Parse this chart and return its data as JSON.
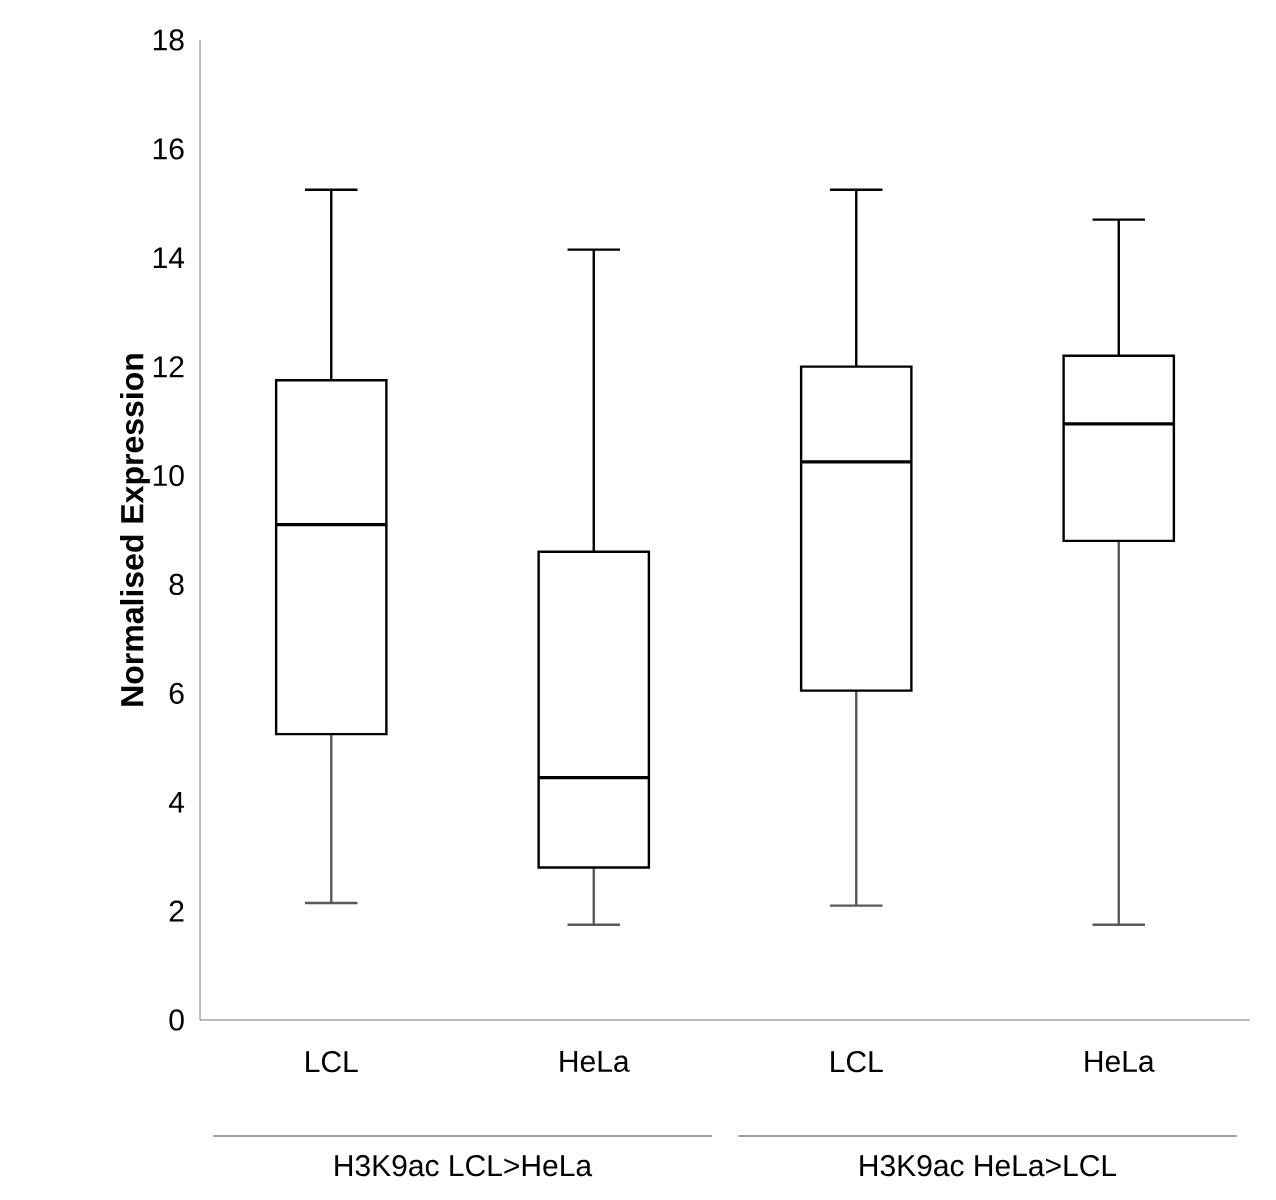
{
  "chart_data": {
    "type": "box",
    "ylabel": "Normalised Expression",
    "categories": [
      "LCL",
      "HeLa",
      "LCL",
      "HeLa"
    ],
    "boxes": [
      {
        "low": 2.15,
        "q1": 5.25,
        "median": 9.1,
        "q3": 11.75,
        "high": 15.25
      },
      {
        "low": 1.75,
        "q1": 2.8,
        "median": 4.45,
        "q3": 8.6,
        "high": 14.15
      },
      {
        "low": 2.1,
        "q1": 6.05,
        "median": 10.25,
        "q3": 12.0,
        "high": 15.25
      },
      {
        "low": 1.75,
        "q1": 8.8,
        "median": 10.95,
        "q3": 12.2,
        "high": 14.7
      }
    ],
    "ylim": [
      0,
      18
    ],
    "yticks": [
      0,
      2,
      4,
      6,
      8,
      10,
      12,
      14,
      16,
      18
    ],
    "annotations": [
      "H3K9ac LCL>HeLa",
      "H3K9ac HeLa>LCL"
    ]
  }
}
